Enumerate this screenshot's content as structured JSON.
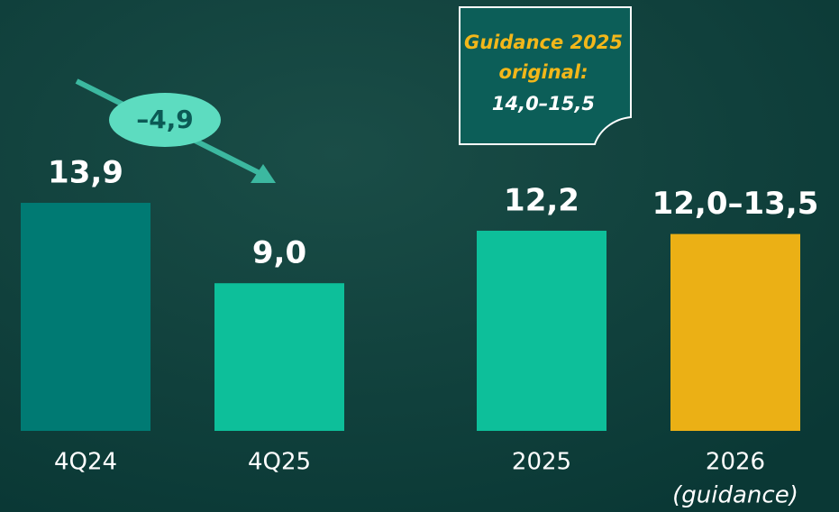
{
  "chart_data": {
    "type": "bar",
    "categories": [
      "4Q24",
      "4Q25",
      "2025",
      "2026"
    ],
    "category_note": "(guidance)",
    "values": [
      13.9,
      9.0,
      12.2,
      12.0
    ],
    "value_labels": [
      "13,9",
      "9,0",
      "12,2",
      "12,0–13,5"
    ],
    "colors": [
      "#007a73",
      "#0dbf9a",
      "#0dbf9a",
      "#ebb015"
    ],
    "annotations": {
      "change": "–4,9",
      "callout": [
        "Guidance 2025",
        "original:",
        "14,0–15,5"
      ]
    }
  }
}
